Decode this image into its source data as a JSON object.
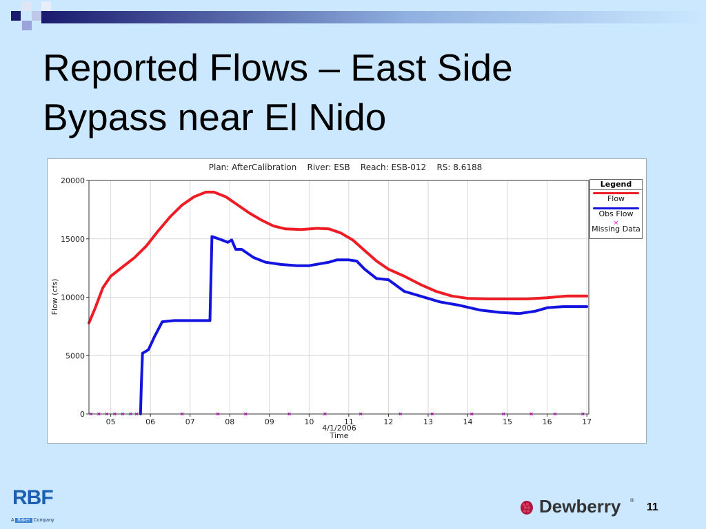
{
  "slide": {
    "title_line1": "Reported Flows – East Side",
    "title_line2": "Bypass near El Nido",
    "page_number": "11"
  },
  "logos": {
    "rbf": {
      "main": "RBF",
      "prefix": "A",
      "middle": "Baker",
      "suffix": "Company"
    },
    "dewberry": {
      "text": "Dewberry",
      "mark": "®"
    }
  },
  "colors": {
    "background": "#cce8ff",
    "flow": "#ee1c24",
    "obs_flow": "#1414e0",
    "missing": "#e000e0",
    "deco_dark": "#1a1a6e"
  },
  "chart_data": {
    "type": "line",
    "title": "Plan: AfterCalibration    River: ESB    Reach: ESB-012    RS: 8.6188",
    "xlabel": "Time",
    "xlabel_sub": "4/1/2006",
    "ylabel": "Flow (cfs)",
    "xlim": [
      4.45,
      17.05
    ],
    "ylim": [
      0,
      20000
    ],
    "x_ticks": [
      "05",
      "06",
      "07",
      "08",
      "09",
      "10",
      "11",
      "12",
      "13",
      "14",
      "15",
      "16",
      "17"
    ],
    "y_ticks": [
      "0",
      "5000",
      "10000",
      "15000",
      "20000"
    ],
    "grid": true,
    "legend": {
      "title": "Legend",
      "placement": "right"
    },
    "series": [
      {
        "name": "Flow",
        "color": "#ee1c24",
        "x": [
          4.45,
          4.6,
          4.8,
          5.0,
          5.3,
          5.6,
          5.9,
          6.2,
          6.5,
          6.8,
          7.1,
          7.4,
          7.6,
          7.9,
          8.2,
          8.5,
          8.8,
          9.1,
          9.4,
          9.8,
          10.2,
          10.5,
          10.8,
          11.1,
          11.4,
          11.7,
          12.0,
          12.4,
          12.8,
          13.2,
          13.6,
          14.0,
          14.5,
          15.0,
          15.5,
          16.0,
          16.5,
          17.0
        ],
        "y": [
          7800,
          9000,
          10800,
          11800,
          12600,
          13400,
          14400,
          15700,
          16900,
          17900,
          18600,
          19000,
          19000,
          18600,
          17900,
          17200,
          16600,
          16100,
          15850,
          15800,
          15900,
          15850,
          15500,
          14900,
          14000,
          13100,
          12400,
          11800,
          11100,
          10500,
          10100,
          9900,
          9850,
          9850,
          9850,
          9950,
          10100,
          10100
        ]
      },
      {
        "name": "Obs Flow",
        "color": "#1414e0",
        "x": [
          5.75,
          5.77,
          5.8,
          5.95,
          6.1,
          6.3,
          6.6,
          7.0,
          7.5,
          7.55,
          7.8,
          7.95,
          8.05,
          8.15,
          8.3,
          8.6,
          8.9,
          9.3,
          9.7,
          10.0,
          10.5,
          10.7,
          11.0,
          11.2,
          11.4,
          11.7,
          12.0,
          12.4,
          12.8,
          13.3,
          13.8,
          14.3,
          14.8,
          15.3,
          15.7,
          16.0,
          16.4,
          17.0
        ],
        "y": [
          0,
          2500,
          5200,
          5500,
          6600,
          7900,
          8000,
          8000,
          8000,
          15200,
          14900,
          14700,
          14900,
          14100,
          14100,
          13400,
          13000,
          12800,
          12700,
          12700,
          13000,
          13200,
          13200,
          13100,
          12400,
          11600,
          11500,
          10500,
          10100,
          9600,
          9300,
          8900,
          8700,
          8600,
          8800,
          9100,
          9200,
          9200
        ]
      },
      {
        "name": "Missing Data",
        "color": "#e000e0",
        "x": [
          4.5,
          4.7,
          4.9,
          5.1,
          5.3,
          5.5,
          5.65,
          6.8,
          7.7,
          8.4,
          9.5,
          10.4,
          11.3,
          12.3,
          13.1,
          14.1,
          14.9,
          15.6,
          16.2,
          16.9
        ],
        "y": [
          0,
          0,
          0,
          0,
          0,
          0,
          0,
          0,
          0,
          0,
          0,
          0,
          0,
          0,
          0,
          0,
          0,
          0,
          0,
          0
        ]
      }
    ]
  }
}
